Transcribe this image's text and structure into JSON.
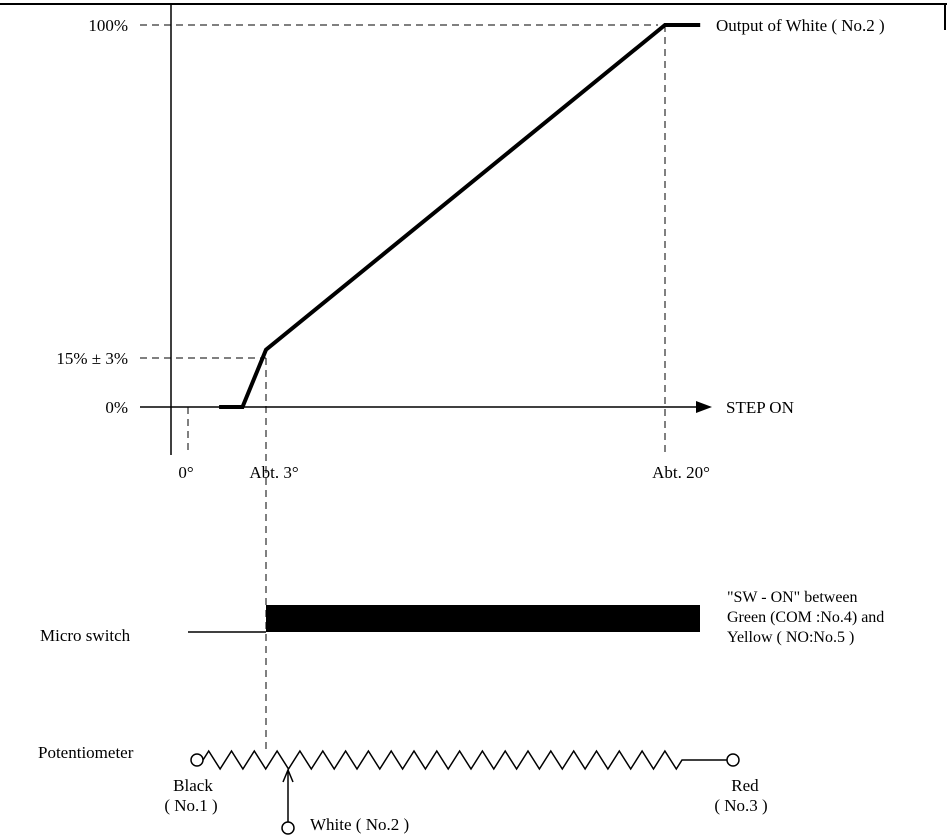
{
  "chart_data": {
    "type": "line",
    "x_unit": "degrees",
    "x": [
      1,
      2,
      3,
      20,
      21.5
    ],
    "values": [
      0,
      0,
      15,
      100,
      100
    ],
    "tolerance_at_3deg": 3,
    "arrow_label": "STEP ON",
    "y_ticks": [
      "100%",
      "15% ± 3%",
      "0%"
    ],
    "x_ticks": [
      "0°",
      "Abt. 3°",
      "Abt. 20°"
    ],
    "series_label": "Output of White ( No.2 )"
  },
  "microswitch": {
    "label": "Micro switch",
    "on_from_deg": 3,
    "note": [
      "\"SW - ON\" between",
      "Green (COM :No.4) and",
      "Yellow ( NO:No.5 )"
    ]
  },
  "potentiometer": {
    "label": "Potentiometer",
    "black_name": "Black",
    "black_no": "( No.1 )",
    "red_name": "Red",
    "red_no": "( No.3 )",
    "white_label": "White ( No.2 )"
  },
  "colors": {
    "ink": "#000000",
    "background": "#ffffff"
  }
}
